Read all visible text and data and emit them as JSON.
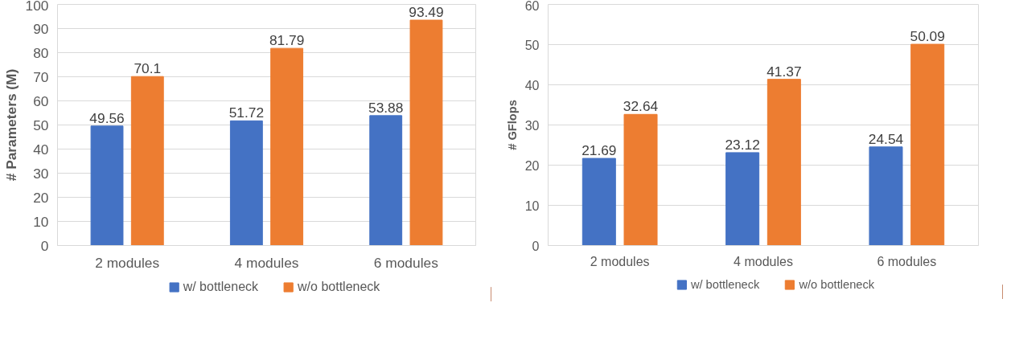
{
  "chart_data": [
    {
      "type": "bar",
      "ylabel": "# Parameters (M)",
      "categories": [
        "2 modules",
        "4 modules",
        "6 modules"
      ],
      "series": [
        {
          "name": "w/ bottleneck",
          "color": "#4472c4",
          "values": [
            49.56,
            51.72,
            53.88
          ]
        },
        {
          "name": "w/o bottleneck",
          "color": "#ed7d31",
          "values": [
            70.1,
            81.79,
            93.49
          ]
        }
      ],
      "ylim": [
        0,
        100
      ],
      "yticks": [
        0,
        10,
        20,
        30,
        40,
        50,
        60,
        70,
        80,
        90,
        100
      ],
      "grid": "y",
      "legend": "bottom",
      "data_labels": true
    },
    {
      "type": "bar",
      "ylabel": "# GFlops",
      "categories": [
        "2 modules",
        "4 modules",
        "6 modules"
      ],
      "series": [
        {
          "name": "w/ bottleneck",
          "color": "#4472c4",
          "values": [
            21.69,
            23.12,
            24.54
          ]
        },
        {
          "name": "w/o bottleneck",
          "color": "#ed7d31",
          "values": [
            32.64,
            41.37,
            50.09
          ]
        }
      ],
      "ylim": [
        0,
        60
      ],
      "yticks": [
        0,
        10,
        20,
        30,
        40,
        50,
        60
      ],
      "grid": "y",
      "legend": "bottom",
      "data_labels": true
    }
  ]
}
